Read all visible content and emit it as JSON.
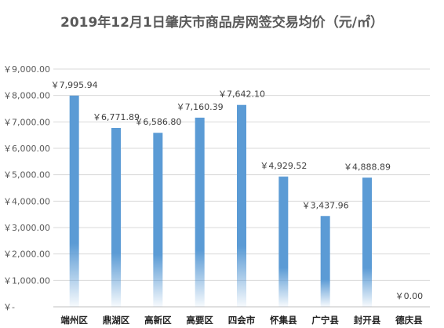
{
  "chart_data": {
    "type": "bar",
    "title": "2019年12月1日肇庆市商品房网签交易均价（元/㎡）",
    "xlabel": "",
    "ylabel": "",
    "categories": [
      "端州区",
      "鼎湖区",
      "高新区",
      "高要区",
      "四会市",
      "怀集县",
      "广宁县",
      "封开县",
      "德庆县"
    ],
    "values": [
      7995.94,
      6771.89,
      6586.8,
      7160.39,
      7642.1,
      4929.52,
      3437.96,
      4888.89,
      0.0
    ],
    "data_labels": [
      "￥7,995.94",
      "￥6,771.89",
      "￥6,586.80",
      "￥7,160.39",
      "￥7,642.10",
      "￥4,929.52",
      "￥3,437.96",
      "￥4,888.89",
      "￥0.00"
    ],
    "ylim": [
      0,
      9000
    ],
    "ytick_labels": [
      "￥-",
      "￥1,000.00",
      "￥2,000.00",
      "￥3,000.00",
      "￥4,000.00",
      "￥5,000.00",
      "￥6,000.00",
      "￥7,000.00",
      "￥8,000.00",
      "￥9,000.00"
    ],
    "grid": true,
    "legend": "none",
    "colors": {
      "bar": "#5b9bd5",
      "grid": "#d9d9d9",
      "axis": "#bfbfbf"
    }
  }
}
